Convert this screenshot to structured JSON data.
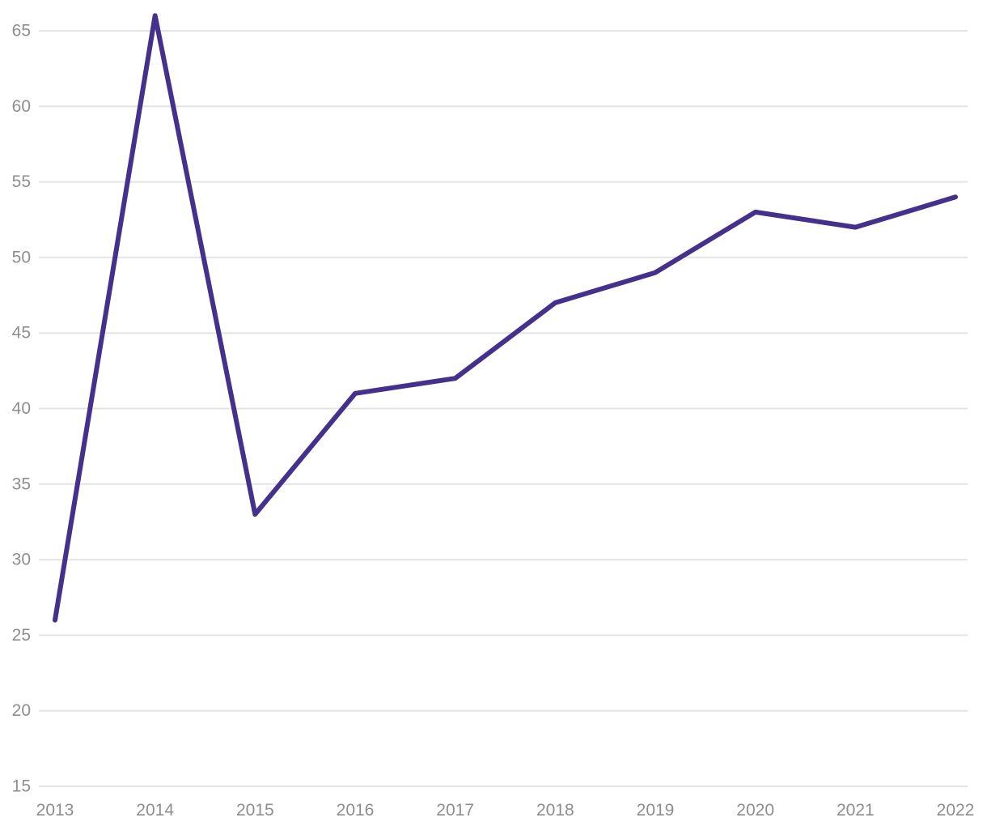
{
  "chart_data": {
    "type": "line",
    "title": "",
    "xlabel": "",
    "ylabel": "",
    "x": [
      "2013",
      "2014",
      "2015",
      "2016",
      "2017",
      "2018",
      "2019",
      "2020",
      "2021",
      "2022"
    ],
    "series": [
      {
        "name": "series-1",
        "values": [
          26,
          66,
          33,
          41,
          42,
          47,
          49,
          53,
          52,
          54
        ]
      }
    ],
    "y_ticks": [
      15,
      20,
      25,
      30,
      35,
      40,
      45,
      50,
      55,
      60,
      65
    ],
    "ylim": [
      15,
      66
    ],
    "grid": "horizontal",
    "legend": "none",
    "colors": {
      "line": "#45308c",
      "gridline": "#e4e4e4",
      "tick_label": "#8e8e8e",
      "background": "#ffffff"
    }
  }
}
